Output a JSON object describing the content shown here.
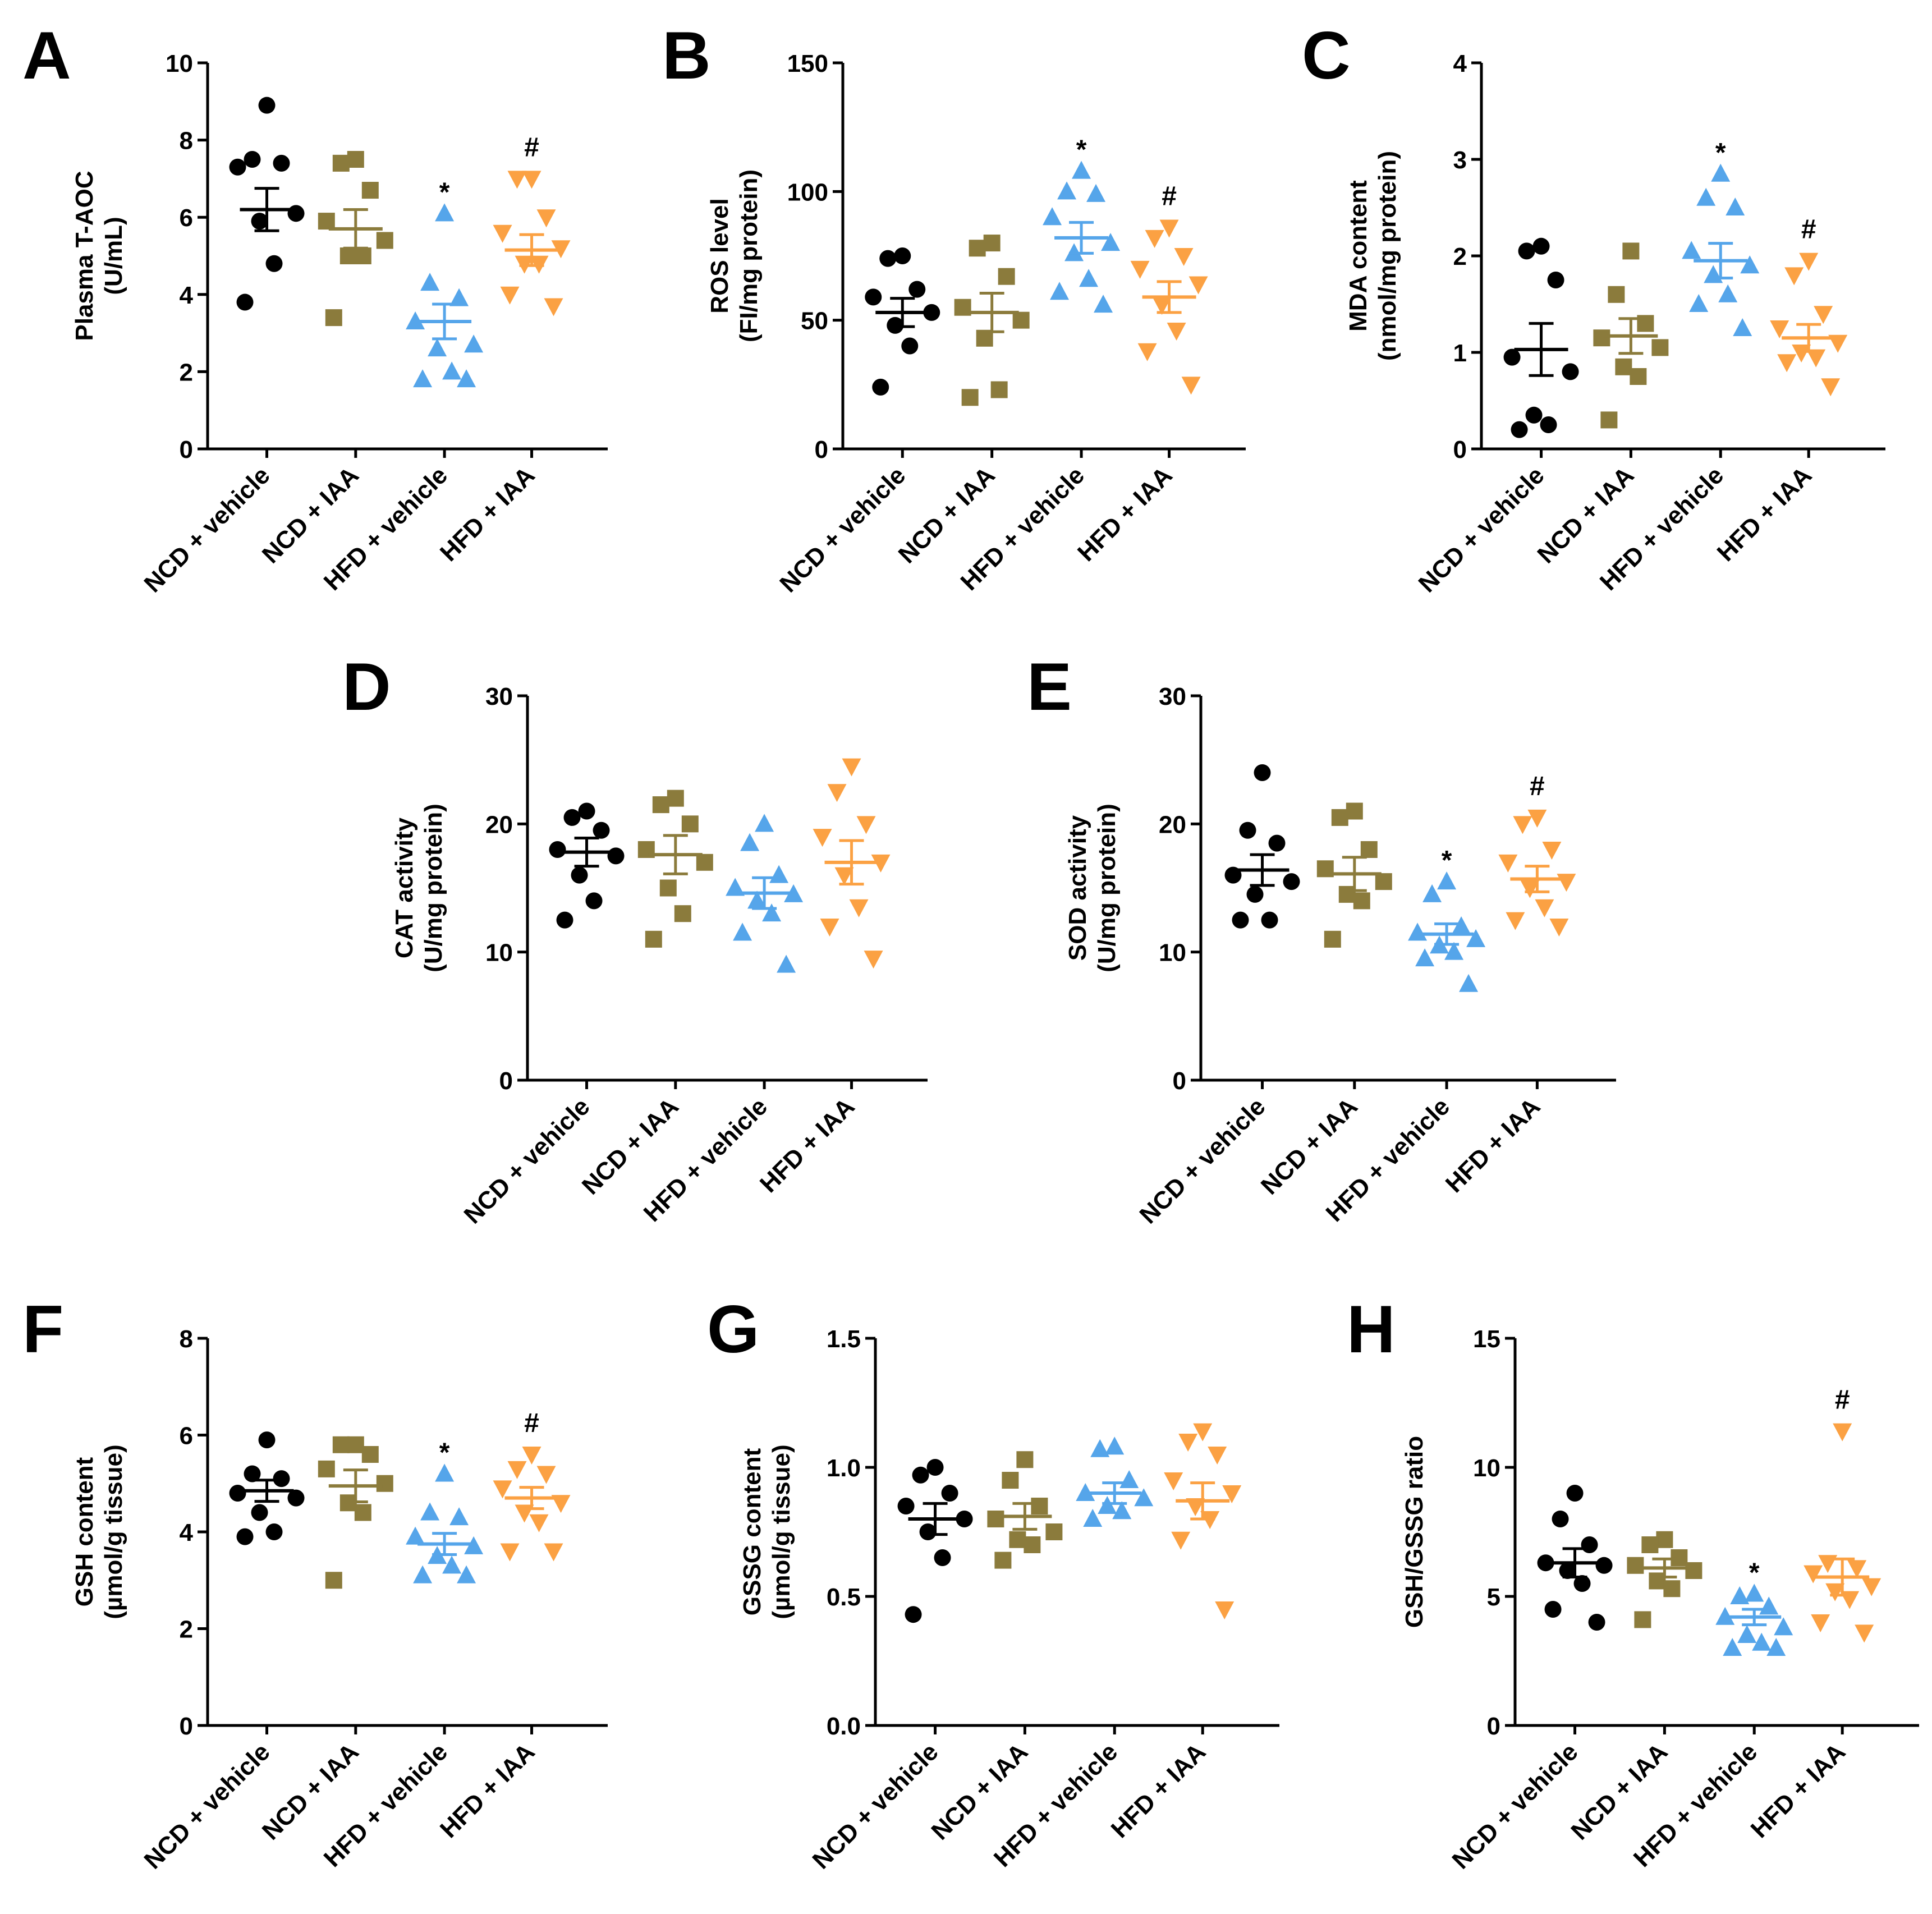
{
  "colors": {
    "NCD + vehicle": "#000000",
    "NCD + IAA": "#8b7b3c",
    "HFD + vehicle": "#55a5ea",
    "HFD + IAA": "#fba143",
    "axis": "#000000"
  },
  "markers": {
    "NCD + vehicle": "circle",
    "NCD + IAA": "square",
    "HFD + vehicle": "triangle-up",
    "HFD + IAA": "triangle-down"
  },
  "chart_data": [
    {
      "panel": "A",
      "type": "scatter",
      "ylabel": [
        "Plasma T-AOC",
        "(U/mL)"
      ],
      "ylim": [
        0,
        10
      ],
      "yticks": [
        0,
        2,
        4,
        6,
        8,
        10
      ],
      "categories": [
        "NCD + vehicle",
        "NCD + IAA",
        "HFD + vehicle",
        "HFD + IAA"
      ],
      "series": [
        {
          "name": "NCD + vehicle",
          "points": [
            8.9,
            7.5,
            7.4,
            7.3,
            6.1,
            5.9,
            4.8,
            3.8
          ],
          "mean": 6.2,
          "sem": 0.55,
          "sig": ""
        },
        {
          "name": "NCD + IAA",
          "points": [
            7.5,
            7.4,
            6.7,
            5.9,
            5.4,
            5.0,
            5.0,
            3.4
          ],
          "mean": 5.7,
          "sem": 0.5,
          "sig": ""
        },
        {
          "name": "HFD + vehicle",
          "points": [
            6.1,
            4.3,
            3.9,
            3.3,
            2.7,
            2.6,
            2.0,
            1.8,
            1.8
          ],
          "mean": 3.3,
          "sem": 0.45,
          "sig": "*"
        },
        {
          "name": "HFD + IAA",
          "points": [
            7.0,
            7.0,
            6.0,
            5.6,
            5.2,
            4.8,
            4.8,
            4.0,
            3.7
          ],
          "mean": 5.15,
          "sem": 0.4,
          "sig": "#"
        }
      ]
    },
    {
      "panel": "B",
      "type": "scatter",
      "ylabel": [
        "ROS level",
        "(FI/mg protein)"
      ],
      "ylim": [
        0,
        150
      ],
      "yticks": [
        0,
        50,
        100,
        150
      ],
      "categories": [
        "NCD + vehicle",
        "NCD + IAA",
        "HFD + vehicle",
        "HFD + IAA"
      ],
      "series": [
        {
          "name": "NCD + vehicle",
          "points": [
            75,
            74,
            62,
            59,
            53,
            48,
            40,
            24
          ],
          "mean": 53,
          "sem": 5.5,
          "sig": ""
        },
        {
          "name": "NCD + IAA",
          "points": [
            80,
            78,
            67,
            55,
            50,
            43,
            23,
            20
          ],
          "mean": 53,
          "sem": 7.5,
          "sig": ""
        },
        {
          "name": "HFD + vehicle",
          "points": [
            108,
            100,
            99,
            90,
            80,
            76,
            66,
            61,
            56
          ],
          "mean": 82,
          "sem": 6,
          "sig": "*"
        },
        {
          "name": "HFD + IAA",
          "points": [
            86,
            82,
            75,
            70,
            64,
            56,
            46,
            38,
            25
          ],
          "mean": 59,
          "sem": 6,
          "sig": "#"
        }
      ]
    },
    {
      "panel": "C",
      "type": "scatter",
      "ylabel": [
        "MDA content",
        "(nmol/mg protein)"
      ],
      "ylim": [
        0,
        4
      ],
      "yticks": [
        0,
        1,
        2,
        3,
        4
      ],
      "categories": [
        "NCD + vehicle",
        "NCD + IAA",
        "HFD + vehicle",
        "HFD + IAA"
      ],
      "series": [
        {
          "name": "NCD + vehicle",
          "points": [
            2.1,
            2.05,
            1.75,
            0.95,
            0.8,
            0.35,
            0.25,
            0.2
          ],
          "mean": 1.03,
          "sem": 0.27,
          "sig": ""
        },
        {
          "name": "NCD + IAA",
          "points": [
            2.05,
            1.6,
            1.3,
            1.15,
            1.05,
            0.85,
            0.75,
            0.3
          ],
          "mean": 1.17,
          "sem": 0.18,
          "sig": ""
        },
        {
          "name": "HFD + vehicle",
          "points": [
            2.85,
            2.6,
            2.5,
            2.05,
            1.9,
            1.8,
            1.6,
            1.5,
            1.25
          ],
          "mean": 1.95,
          "sem": 0.18,
          "sig": "*"
        },
        {
          "name": "HFD + IAA",
          "points": [
            1.95,
            1.8,
            1.4,
            1.25,
            1.1,
            1.0,
            0.95,
            0.9,
            0.65
          ],
          "mean": 1.15,
          "sem": 0.14,
          "sig": "#"
        }
      ]
    },
    {
      "panel": "D",
      "type": "scatter",
      "ylabel": [
        "CAT activity",
        "(U/mg protein)"
      ],
      "ylim": [
        0,
        30
      ],
      "yticks": [
        0,
        10,
        20,
        30
      ],
      "categories": [
        "NCD + vehicle",
        "NCD + IAA",
        "HFD + vehicle",
        "HFD + IAA"
      ],
      "series": [
        {
          "name": "NCD + vehicle",
          "points": [
            21,
            20.5,
            19.5,
            18,
            17.5,
            16,
            14,
            12.5
          ],
          "mean": 17.8,
          "sem": 1.1,
          "sig": ""
        },
        {
          "name": "NCD + IAA",
          "points": [
            22,
            21.5,
            20,
            18,
            17,
            15,
            13,
            11
          ],
          "mean": 17.6,
          "sem": 1.5,
          "sig": ""
        },
        {
          "name": "HFD + vehicle",
          "points": [
            20,
            18.5,
            16,
            15,
            14.5,
            14,
            13,
            11.5,
            9
          ],
          "mean": 14.6,
          "sem": 1.2,
          "sig": ""
        },
        {
          "name": "HFD + IAA",
          "points": [
            24.5,
            22.5,
            20,
            19,
            17,
            16,
            13.5,
            12,
            9.5
          ],
          "mean": 17.0,
          "sem": 1.7,
          "sig": ""
        }
      ]
    },
    {
      "panel": "E",
      "type": "scatter",
      "ylabel": [
        "SOD activity",
        "(U/mg protein)"
      ],
      "ylim": [
        0,
        30
      ],
      "yticks": [
        0,
        10,
        20,
        30
      ],
      "categories": [
        "NCD + vehicle",
        "NCD + IAA",
        "HFD + vehicle",
        "HFD + IAA"
      ],
      "series": [
        {
          "name": "NCD + vehicle",
          "points": [
            24,
            19.5,
            18.5,
            16,
            15.5,
            14.5,
            12.5,
            12.5
          ],
          "mean": 16.4,
          "sem": 1.2,
          "sig": ""
        },
        {
          "name": "NCD + IAA",
          "points": [
            21,
            20.5,
            18,
            16.5,
            15.5,
            14.5,
            14,
            11
          ],
          "mean": 16.1,
          "sem": 1.3,
          "sig": ""
        },
        {
          "name": "HFD + vehicle",
          "points": [
            15.5,
            14.5,
            12,
            11.5,
            11,
            10.5,
            10,
            9.5,
            7.5
          ],
          "mean": 11.4,
          "sem": 0.8,
          "sig": "*"
        },
        {
          "name": "HFD + IAA",
          "points": [
            20.5,
            20,
            18,
            17,
            15.5,
            15,
            13.5,
            12.5,
            12
          ],
          "mean": 15.7,
          "sem": 1.0,
          "sig": "#"
        }
      ]
    },
    {
      "panel": "F",
      "type": "scatter",
      "ylabel": [
        "GSH content",
        "(µmol/g tissue)"
      ],
      "ylim": [
        0,
        8
      ],
      "yticks": [
        0,
        2,
        4,
        6,
        8
      ],
      "categories": [
        "NCD + vehicle",
        "NCD + IAA",
        "HFD + vehicle",
        "HFD + IAA"
      ],
      "series": [
        {
          "name": "NCD + vehicle",
          "points": [
            5.9,
            5.2,
            5.1,
            4.8,
            4.7,
            4.4,
            4.0,
            3.9
          ],
          "mean": 4.85,
          "sem": 0.22,
          "sig": ""
        },
        {
          "name": "NCD + IAA",
          "points": [
            5.8,
            5.8,
            5.6,
            5.3,
            5.0,
            4.6,
            4.4,
            3.0
          ],
          "mean": 4.95,
          "sem": 0.33,
          "sig": ""
        },
        {
          "name": "HFD + vehicle",
          "points": [
            5.2,
            4.4,
            4.3,
            3.9,
            3.7,
            3.5,
            3.3,
            3.1,
            3.1
          ],
          "mean": 3.75,
          "sem": 0.22,
          "sig": "*"
        },
        {
          "name": "HFD + IAA",
          "points": [
            5.6,
            5.3,
            5.2,
            4.9,
            4.6,
            4.4,
            4.2,
            3.6,
            3.6
          ],
          "mean": 4.7,
          "sem": 0.22,
          "sig": "#"
        }
      ]
    },
    {
      "panel": "G",
      "type": "scatter",
      "ylabel": [
        "GSSG content",
        "(µmol/g tissue)"
      ],
      "ylim": [
        0,
        1.5
      ],
      "yticks": [
        "0.0",
        "0.5",
        "1.0",
        "1.5"
      ],
      "categories": [
        "NCD + vehicle",
        "NCD + IAA",
        "HFD + vehicle",
        "HFD + IAA"
      ],
      "series": [
        {
          "name": "NCD + vehicle",
          "points": [
            1.0,
            0.97,
            0.9,
            0.85,
            0.8,
            0.75,
            0.65,
            0.43
          ],
          "mean": 0.8,
          "sem": 0.06,
          "sig": ""
        },
        {
          "name": "NCD + IAA",
          "points": [
            1.03,
            0.95,
            0.85,
            0.8,
            0.75,
            0.72,
            0.7,
            0.64
          ],
          "mean": 0.81,
          "sem": 0.05,
          "sig": ""
        },
        {
          "name": "HFD + vehicle",
          "points": [
            1.08,
            1.07,
            0.95,
            0.9,
            0.88,
            0.85,
            0.83,
            0.8
          ],
          "mean": 0.9,
          "sem": 0.04,
          "sig": ""
        },
        {
          "name": "HFD + IAA",
          "points": [
            1.14,
            1.1,
            1.05,
            0.95,
            0.9,
            0.85,
            0.8,
            0.72,
            0.45
          ],
          "mean": 0.87,
          "sem": 0.07,
          "sig": ""
        }
      ]
    },
    {
      "panel": "H",
      "type": "scatter",
      "ylabel": [
        "GSH/GSSG ratio"
      ],
      "ylim": [
        0,
        15
      ],
      "yticks": [
        0,
        5,
        10,
        15
      ],
      "categories": [
        "NCD + vehicle",
        "NCD + IAA",
        "HFD + vehicle",
        "HFD + IAA"
      ],
      "series": [
        {
          "name": "NCD + vehicle",
          "points": [
            9.0,
            8.0,
            7.0,
            6.3,
            6.2,
            6.0,
            5.5,
            4.5,
            4.0
          ],
          "mean": 6.3,
          "sem": 0.55,
          "sig": ""
        },
        {
          "name": "NCD + IAA",
          "points": [
            7.2,
            7.0,
            6.5,
            6.2,
            6.0,
            5.6,
            5.3,
            4.1
          ],
          "mean": 6.1,
          "sem": 0.35,
          "sig": ""
        },
        {
          "name": "HFD + vehicle",
          "points": [
            5.1,
            5.0,
            4.6,
            4.2,
            3.8,
            3.5,
            3.2,
            3.0,
            3.0
          ],
          "mean": 4.2,
          "sem": 0.3,
          "sig": "*"
        },
        {
          "name": "HFD + IAA",
          "points": [
            11.4,
            6.3,
            6.1,
            5.9,
            5.4,
            5.2,
            4.9,
            4.0,
            3.6
          ],
          "mean": 5.75,
          "sem": 0.7,
          "sig": "#"
        }
      ]
    }
  ]
}
